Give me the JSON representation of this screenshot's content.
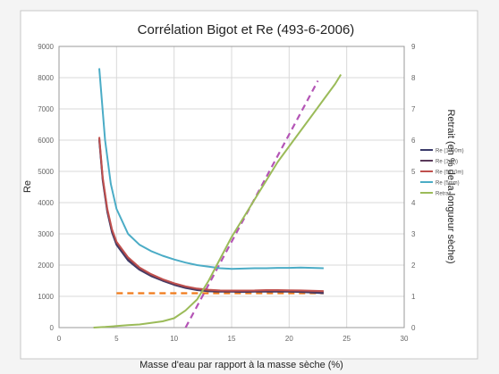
{
  "chart_data": {
    "type": "line",
    "title": "Corrélation Bigot et Re (493-6-2006)",
    "xlabel": "Masse d'eau par rapport à la masse sèche (%)",
    "ylabel": "Re",
    "y2label": "Retrait (en % de la longueur sèche)",
    "xlim": [
      0,
      30
    ],
    "ylim": [
      0,
      9000
    ],
    "y2lim": [
      0,
      9
    ],
    "x_ticks": [
      "0",
      "5",
      "10",
      "15",
      "20",
      "25",
      "30"
    ],
    "y_ticks": [
      "0",
      "1000",
      "2000",
      "3000",
      "4000",
      "5000",
      "6000",
      "7000",
      "8000",
      "9000"
    ],
    "y2_ticks": [
      "0",
      "1",
      "2",
      "3",
      "4",
      "5",
      "6",
      "7",
      "8",
      "9"
    ],
    "grid": true,
    "legend_position": "right",
    "series": [
      {
        "name": "Re (1000m)",
        "color": "#3a3a6a",
        "axis": "left",
        "x": [
          3.5,
          3.8,
          4.2,
          4.6,
          5,
          6,
          7,
          8,
          9,
          10,
          11,
          12,
          13,
          14,
          15,
          16,
          17,
          18,
          19,
          20,
          21,
          22,
          23
        ],
        "y": [
          6000,
          4700,
          3700,
          3050,
          2650,
          2150,
          1850,
          1650,
          1500,
          1370,
          1270,
          1200,
          1160,
          1150,
          1150,
          1140,
          1150,
          1155,
          1150,
          1150,
          1140,
          1120,
          1100
        ]
      },
      {
        "name": "Re (1dm)",
        "color": "#5a3a5a",
        "axis": "left",
        "x": [
          3.5,
          3.8,
          4.2,
          4.6,
          5,
          6,
          7,
          8,
          9,
          10,
          11,
          12,
          13,
          14,
          15,
          16,
          17,
          18,
          19,
          20,
          21,
          22,
          23
        ],
        "y": [
          6050,
          4750,
          3750,
          3100,
          2700,
          2200,
          1880,
          1680,
          1520,
          1390,
          1290,
          1220,
          1180,
          1165,
          1160,
          1160,
          1165,
          1170,
          1170,
          1165,
          1160,
          1150,
          1140
        ]
      },
      {
        "name": "Re (5x10m)",
        "color": "#c0504d",
        "axis": "left",
        "x": [
          3.5,
          3.8,
          4.2,
          4.6,
          5,
          6,
          7,
          8,
          9,
          10,
          11,
          12,
          13,
          14,
          15,
          16,
          17,
          18,
          19,
          20,
          21,
          22,
          23
        ],
        "y": [
          6100,
          4800,
          3800,
          3150,
          2750,
          2250,
          1920,
          1710,
          1550,
          1420,
          1320,
          1250,
          1210,
          1190,
          1185,
          1185,
          1190,
          1200,
          1200,
          1195,
          1190,
          1180,
          1170
        ]
      },
      {
        "name": "Re (5mm)",
        "color": "#4bacc6",
        "axis": "left",
        "x": [
          3.5,
          4,
          4.5,
          5,
          6,
          7,
          8,
          9,
          10,
          11,
          12,
          13,
          14,
          15,
          16,
          17,
          18,
          19,
          20,
          21,
          22,
          23
        ],
        "y": [
          8300,
          6000,
          4600,
          3800,
          3000,
          2650,
          2450,
          2300,
          2180,
          2080,
          2000,
          1950,
          1900,
          1880,
          1890,
          1900,
          1900,
          1910,
          1910,
          1920,
          1910,
          1900
        ]
      },
      {
        "name": "Retrait",
        "color": "#9bbb59",
        "axis": "right",
        "x": [
          3,
          4,
          5,
          6,
          7,
          8,
          9,
          10,
          11,
          12,
          13,
          14,
          15,
          16,
          17,
          18,
          19,
          20,
          21,
          22,
          23,
          24,
          24.5
        ],
        "y": [
          0,
          0.02,
          0.05,
          0.08,
          0.1,
          0.15,
          0.2,
          0.3,
          0.55,
          0.9,
          1.5,
          2.2,
          2.9,
          3.5,
          4.1,
          4.7,
          5.3,
          5.8,
          6.3,
          6.8,
          7.3,
          7.8,
          8.1
        ]
      }
    ],
    "reference_lines": [
      {
        "style": "dashed",
        "color": "#f07a1a",
        "axis": "left",
        "x": [
          5,
          23
        ],
        "y": [
          1100,
          1100
        ]
      },
      {
        "style": "dashed",
        "color": "#b455b6",
        "axis": "right",
        "x": [
          11,
          22.5
        ],
        "y": [
          0,
          7.9
        ]
      }
    ]
  }
}
